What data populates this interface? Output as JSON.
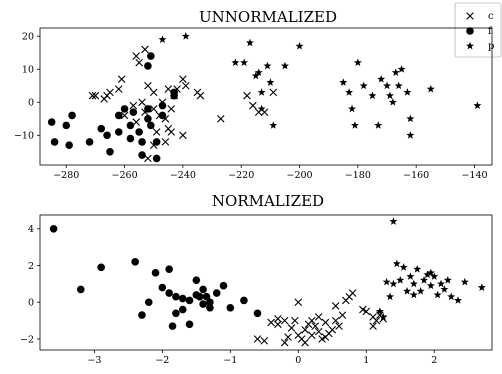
{
  "chart_data": [
    {
      "type": "scatter",
      "title": "UNNORMALIZED",
      "xlabel": "",
      "ylabel": "",
      "xlim": [
        -289,
        -134
      ],
      "ylim": [
        -19,
        22.5
      ],
      "xticks": [
        -280,
        -260,
        -240,
        -220,
        -200,
        -180,
        -160,
        -140
      ],
      "yticks": [
        -10,
        0,
        10,
        20
      ],
      "legend": {
        "position": "top-right",
        "entries": [
          "c",
          "f",
          "p"
        ]
      },
      "series": [
        {
          "name": "c",
          "marker": "x",
          "points": [
            [
              -261,
              7
            ],
            [
              -262,
              4
            ],
            [
              -265,
              3
            ],
            [
              -266,
              2
            ],
            [
              -267,
              1
            ],
            [
              -270,
              2
            ],
            [
              -271,
              2
            ],
            [
              -254,
              0
            ],
            [
              -252,
              5
            ],
            [
              -250,
              3
            ],
            [
              -257,
              -1
            ],
            [
              -253,
              -3
            ],
            [
              -256,
              -6
            ],
            [
              -248,
              -4
            ],
            [
              -249,
              -9
            ],
            [
              -246,
              -5
            ],
            [
              -245,
              -8
            ],
            [
              -244,
              -2
            ],
            [
              -247,
              0
            ],
            [
              -250,
              -2
            ],
            [
              -243,
              2
            ],
            [
              -242,
              4
            ],
            [
              -240,
              7
            ],
            [
              -239,
              5
            ],
            [
              -245,
              4
            ],
            [
              -235,
              3
            ],
            [
              -234,
              2
            ],
            [
              -250,
              -13
            ],
            [
              -252,
              -17
            ],
            [
              -244,
              -9
            ],
            [
              -255,
              12
            ],
            [
              -256,
              14
            ],
            [
              -253,
              16
            ],
            [
              -260,
              -4
            ],
            [
              -227,
              -5
            ],
            [
              -218,
              2
            ],
            [
              -216,
              -1
            ],
            [
              -214,
              -3
            ],
            [
              -212,
              -3
            ],
            [
              -209,
              3
            ],
            [
              -240,
              -10
            ],
            [
              -246,
              -12
            ]
          ]
        },
        {
          "name": "f",
          "marker": "dot",
          "points": [
            [
              -285,
              -6
            ],
            [
              -284,
              -12
            ],
            [
              -279,
              -13
            ],
            [
              -278,
              -4
            ],
            [
              -280,
              -7
            ],
            [
              -272,
              -12
            ],
            [
              -268,
              -8
            ],
            [
              -266,
              -10
            ],
            [
              -265,
              -15
            ],
            [
              -262,
              -9
            ],
            [
              -262,
              -4
            ],
            [
              -260,
              -2
            ],
            [
              -258,
              -7
            ],
            [
              -257,
              -3
            ],
            [
              -258,
              -11
            ],
            [
              -255,
              -9
            ],
            [
              -254,
              -16
            ],
            [
              -254,
              -12
            ],
            [
              -252,
              -2
            ],
            [
              -252,
              -5
            ],
            [
              -251,
              -7
            ],
            [
              -249,
              -12
            ],
            [
              -249,
              -17
            ],
            [
              -247,
              -1
            ],
            [
              -251,
              14
            ],
            [
              -252,
              11
            ],
            [
              -243,
              2
            ],
            [
              -243,
              3
            ],
            [
              -247,
              -4
            ]
          ]
        },
        {
          "name": "p",
          "marker": "star",
          "points": [
            [
              -239,
              20
            ],
            [
              -247,
              19
            ],
            [
              -222,
              12
            ],
            [
              -219,
              12
            ],
            [
              -217,
              18
            ],
            [
              -215,
              8
            ],
            [
              -214,
              9
            ],
            [
              -213,
              3
            ],
            [
              -210,
              6
            ],
            [
              -211,
              11
            ],
            [
              -213,
              -2
            ],
            [
              -209,
              -7
            ],
            [
              -200,
              17
            ],
            [
              -185,
              6
            ],
            [
              -183,
              3
            ],
            [
              -182,
              -2
            ],
            [
              -180,
              12
            ],
            [
              -178,
              5
            ],
            [
              -175,
              2
            ],
            [
              -172,
              7
            ],
            [
              -170,
              5
            ],
            [
              -169,
              2
            ],
            [
              -167,
              9
            ],
            [
              -166,
              5
            ],
            [
              -165,
              10
            ],
            [
              -163,
              3
            ],
            [
              -162,
              -5
            ],
            [
              -162,
              -10
            ],
            [
              -155,
              4
            ],
            [
              -168,
              0
            ],
            [
              -173,
              -7
            ],
            [
              -181,
              -7
            ],
            [
              -139,
              -1
            ],
            [
              -205,
              11
            ]
          ]
        }
      ]
    },
    {
      "type": "scatter",
      "title": "NORMALIZED",
      "xlabel": "",
      "ylabel": "",
      "xlim": [
        -3.8,
        2.85
      ],
      "ylim": [
        -2.6,
        4.75
      ],
      "xticks": [
        -3,
        -2,
        -1,
        0,
        1,
        2
      ],
      "yticks": [
        -2,
        0,
        2,
        4
      ],
      "series": [
        {
          "name": "c",
          "marker": "x",
          "points": [
            [
              -0.6,
              -2.0
            ],
            [
              -0.5,
              -2.1
            ],
            [
              -0.4,
              -1.1
            ],
            [
              -0.3,
              -0.9
            ],
            [
              -0.2,
              -2.2
            ],
            [
              -0.15,
              -1.9
            ],
            [
              -0.1,
              -1.4
            ],
            [
              0.0,
              -1.8
            ],
            [
              0.05,
              -2.0
            ],
            [
              0.1,
              -2.2
            ],
            [
              0.1,
              -1.5
            ],
            [
              0.15,
              -1.2
            ],
            [
              0.2,
              -1.0
            ],
            [
              0.2,
              -1.8
            ],
            [
              0.25,
              -1.3
            ],
            [
              0.3,
              -1.6
            ],
            [
              0.3,
              -0.8
            ],
            [
              0.35,
              -2.0
            ],
            [
              0.4,
              -1.1
            ],
            [
              0.45,
              -1.7
            ],
            [
              0.5,
              -1.5
            ],
            [
              0.55,
              -1.0
            ],
            [
              0.6,
              -1.3
            ],
            [
              0.65,
              -0.7
            ],
            [
              0.7,
              0.1
            ],
            [
              0.75,
              0.3
            ],
            [
              0.8,
              0.5
            ],
            [
              0.0,
              0.0
            ],
            [
              -0.3,
              -1.2
            ],
            [
              -0.05,
              -1.0
            ],
            [
              1.0,
              -0.5
            ],
            [
              1.1,
              -0.8
            ],
            [
              1.15,
              -1.0
            ],
            [
              1.2,
              -0.7
            ],
            [
              0.95,
              -0.4
            ],
            [
              1.1,
              -1.3
            ],
            [
              1.25,
              -0.9
            ],
            [
              0.55,
              -0.2
            ],
            [
              -0.2,
              -1.0
            ],
            [
              0.4,
              -1.9
            ]
          ]
        },
        {
          "name": "f",
          "marker": "dot",
          "points": [
            [
              -3.6,
              4.0
            ],
            [
              -3.2,
              0.7
            ],
            [
              -2.9,
              1.9
            ],
            [
              -2.4,
              2.2
            ],
            [
              -2.2,
              0.0
            ],
            [
              -2.3,
              -0.7
            ],
            [
              -2.1,
              1.6
            ],
            [
              -2.0,
              0.8
            ],
            [
              -1.9,
              1.8
            ],
            [
              -1.9,
              0.5
            ],
            [
              -1.8,
              0.3
            ],
            [
              -1.8,
              -0.6
            ],
            [
              -1.7,
              -0.4
            ],
            [
              -1.6,
              0.1
            ],
            [
              -1.5,
              0.4
            ],
            [
              -1.45,
              0.3
            ],
            [
              -1.4,
              -0.1
            ],
            [
              -1.4,
              0.7
            ],
            [
              -1.3,
              -0.3
            ],
            [
              -1.3,
              0.0
            ],
            [
              -1.2,
              0.5
            ],
            [
              -1.1,
              0.9
            ],
            [
              -1.0,
              -0.3
            ],
            [
              -0.8,
              0.1
            ],
            [
              -0.6,
              -0.6
            ],
            [
              -1.6,
              -1.2
            ],
            [
              -1.5,
              1.2
            ],
            [
              -1.85,
              -1.3
            ],
            [
              -1.7,
              0.2
            ],
            [
              -1.35,
              0.3
            ]
          ]
        },
        {
          "name": "p",
          "marker": "star",
          "points": [
            [
              1.4,
              4.4
            ],
            [
              1.3,
              1.1
            ],
            [
              1.35,
              0.3
            ],
            [
              1.45,
              2.1
            ],
            [
              1.5,
              1.2
            ],
            [
              1.55,
              1.9
            ],
            [
              1.6,
              0.6
            ],
            [
              1.65,
              1.4
            ],
            [
              1.7,
              1.0
            ],
            [
              1.75,
              1.8
            ],
            [
              1.8,
              0.6
            ],
            [
              1.85,
              1.2
            ],
            [
              1.9,
              1.5
            ],
            [
              1.95,
              0.9
            ],
            [
              2.0,
              1.4
            ],
            [
              2.05,
              0.4
            ],
            [
              2.1,
              1.0
            ],
            [
              2.15,
              0.7
            ],
            [
              2.25,
              0.3
            ],
            [
              2.35,
              0.1
            ],
            [
              2.45,
              1.1
            ],
            [
              2.7,
              0.8
            ],
            [
              1.2,
              -0.5
            ],
            [
              1.25,
              -0.8
            ],
            [
              1.4,
              1.0
            ],
            [
              1.7,
              0.4
            ],
            [
              1.95,
              1.6
            ],
            [
              2.2,
              1.2
            ]
          ]
        }
      ]
    }
  ]
}
